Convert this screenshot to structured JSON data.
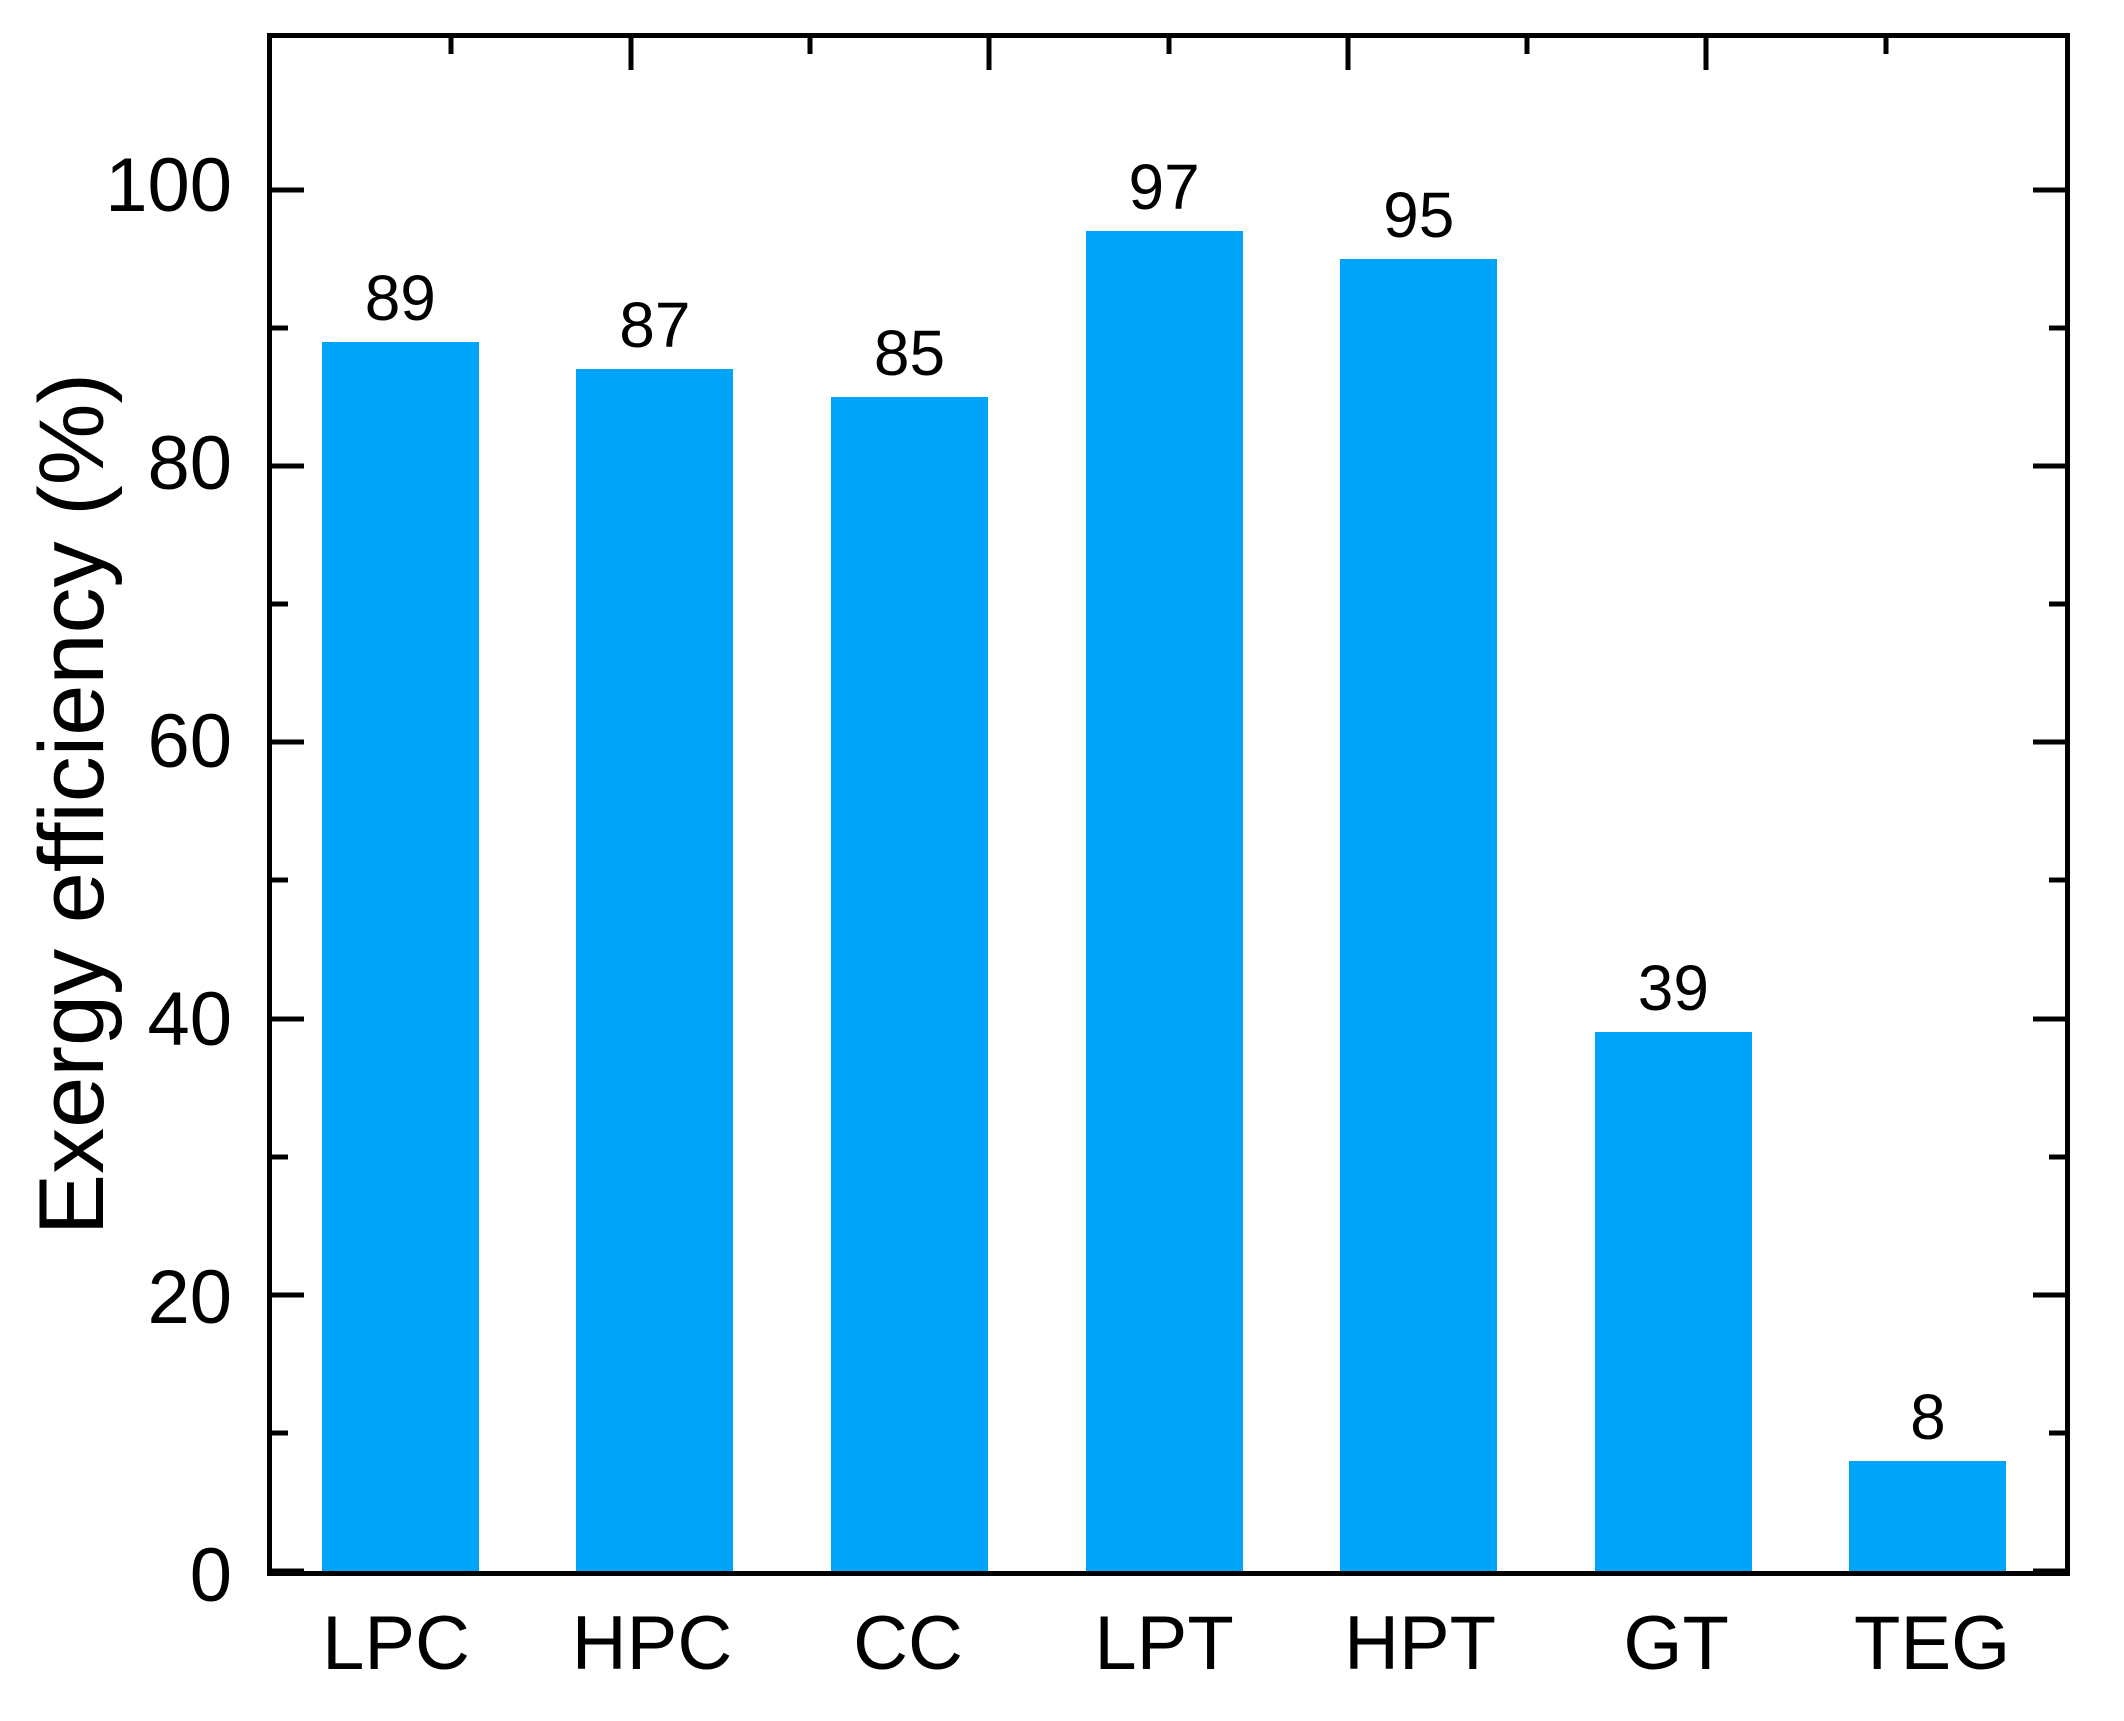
{
  "chart_data": {
    "type": "bar",
    "categories": [
      "LPC",
      "HPC",
      "CC",
      "LPT",
      "HPT",
      "GT",
      "TEG"
    ],
    "values": [
      89,
      87,
      85,
      97,
      95,
      39,
      8
    ],
    "value_labels": [
      "89",
      "87",
      "85",
      "97",
      "95",
      "39",
      "8"
    ],
    "title": "",
    "xlabel": "",
    "ylabel": "Exergy efficiency (%)",
    "ylim": [
      0,
      111
    ],
    "yticks": [
      0,
      20,
      40,
      60,
      80,
      100
    ],
    "ytick_labels": [
      "0",
      "20",
      "40",
      "60",
      "80",
      "100"
    ],
    "yminorticks": [
      10,
      30,
      50,
      70,
      90
    ],
    "top_axis_major_ticks_pct": [
      20,
      40,
      60,
      80
    ],
    "top_axis_minor_ticks_pct": [
      10,
      30,
      50,
      70,
      90
    ],
    "grid": false,
    "legend_position": "none",
    "tick_direction": "in",
    "bar_color": "#00A4F8",
    "axis_color": "#000000",
    "background_color": "#FFFFFF"
  }
}
